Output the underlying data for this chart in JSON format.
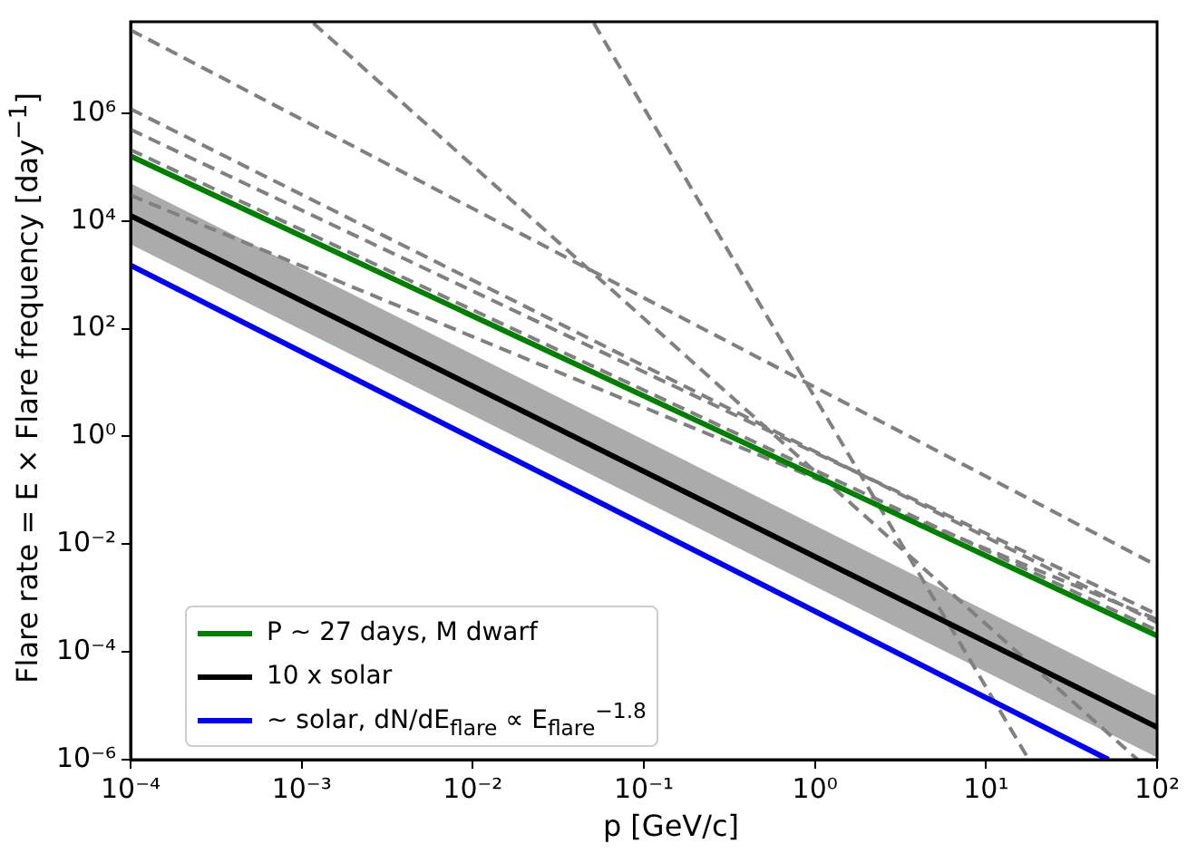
{
  "chart_data": {
    "type": "line",
    "xlabel": "p [GeV/c]",
    "ylabel": "Flare rate = E × Flare frequency [day$^{−1}$]",
    "log": "xy",
    "grid": false,
    "legend": "bottom left",
    "marker": "none",
    "xlim": [
      0.0001,
      100
    ],
    "ylim": [
      1e-06,
      50000000
    ],
    "xticks": [
      {
        "value": 0.0001,
        "label": "10⁻⁴"
      },
      {
        "value": 0.001,
        "label": "10⁻³"
      },
      {
        "value": 0.01,
        "label": "10⁻²"
      },
      {
        "value": 0.1,
        "label": "10⁻¹"
      },
      {
        "value": 1,
        "label": "10⁰"
      },
      {
        "value": 10,
        "label": "10¹"
      },
      {
        "value": 100,
        "label": "10²"
      }
    ],
    "yticks": [
      {
        "value": 1e-06,
        "label": "10⁻⁶"
      },
      {
        "value": 0.0001,
        "label": "10⁻⁴"
      },
      {
        "value": 0.01,
        "label": "10⁻²"
      },
      {
        "value": 1,
        "label": "10⁰"
      },
      {
        "value": 100,
        "label": "10²"
      },
      {
        "value": 10000,
        "label": "10⁴"
      },
      {
        "value": 1000000,
        "label": "10⁶"
      }
    ],
    "series": [
      {
        "color": "#808080",
        "line_style": "dashed",
        "x": [
          0.0001,
          100
        ],
        "values": [
          35000000,
          0.004
        ]
      },
      {
        "color": "#808080",
        "line_style": "dashed",
        "x": [
          0.00117,
          77
        ],
        "values": [
          47000000,
          1e-06
        ]
      },
      {
        "color": "#808080",
        "line_style": "dashed",
        "x": [
          0.051,
          17.8
        ],
        "values": [
          47000000,
          1e-06
        ]
      },
      {
        "color": "#808080",
        "line_style": "dashed",
        "x": [
          0.0001,
          100
        ],
        "values": [
          1200000,
          0.00035
        ]
      },
      {
        "color": "#808080",
        "line_style": "dashed",
        "x": [
          0.0001,
          100
        ],
        "values": [
          500000,
          0.0005
        ]
      },
      {
        "color": "#808080",
        "line_style": "dashed",
        "x": [
          0.0001,
          100
        ],
        "values": [
          210000,
          0.00025
        ]
      },
      {
        "color": "#808080",
        "line_style": "dashed",
        "x": [
          0.0001,
          100
        ],
        "values": [
          30000,
          0.0004
        ]
      },
      {
        "name": "P ~ 27 days, M dwarf",
        "color": "#008000",
        "line_style": "solid",
        "x": [
          0.0001,
          100
        ],
        "values": [
          160000,
          0.0002
        ]
      },
      {
        "name": "10 x solar",
        "color": "#000000",
        "line_style": "solid",
        "x": [
          0.0001,
          100
        ],
        "values": [
          12600,
          4e-06
        ],
        "lower": [
          3700,
          1.1e-06
        ],
        "upper": [
          50000,
          1.5e-05
        ]
      },
      {
        "name": "~ solar, dN/dE$_{flare}$ ∝ E$_{flare}$$^{−1.8}$",
        "color": "#0000ff",
        "line_style": "solid",
        "x": [
          0.0001,
          52
        ],
        "values": [
          1500,
          1e-06
        ]
      }
    ]
  }
}
